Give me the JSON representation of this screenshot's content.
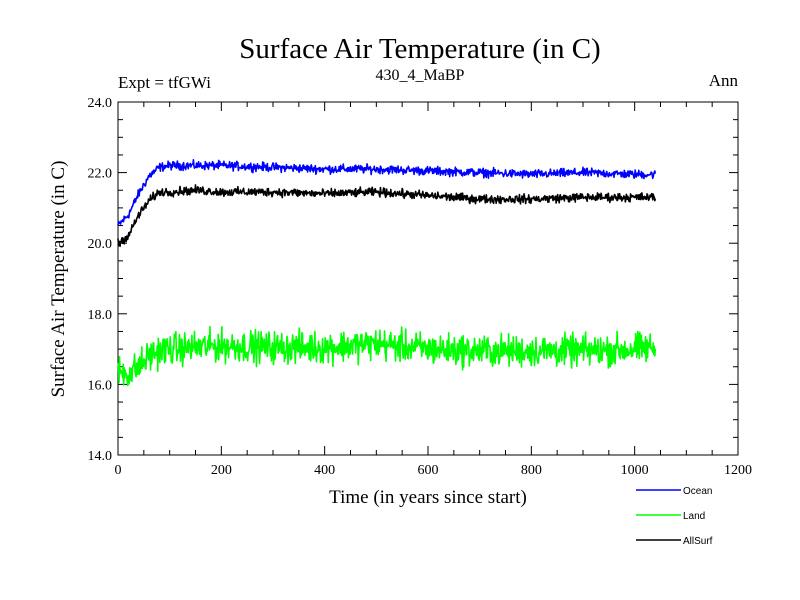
{
  "chart_data": {
    "type": "line",
    "title": "Surface Air Temperature (in C)",
    "subtitle": "430_4_MaBP",
    "left_label": "Expt = tfGWi",
    "right_label": "Ann",
    "xlabel": "Time (in years since start)",
    "ylabel": "Surface Air Temperature (in C)",
    "xlim": [
      0,
      1200
    ],
    "ylim": [
      14.0,
      24.0
    ],
    "x_ticks": [
      0,
      200,
      400,
      600,
      800,
      1000,
      1200
    ],
    "x_tick_labels": [
      "0",
      "200",
      "400",
      "600",
      "800",
      "1000",
      "1200"
    ],
    "y_ticks": [
      14,
      16,
      18,
      20,
      22,
      24
    ],
    "y_tick_labels": [
      "14.0",
      "16.0",
      "18.0",
      "20.0",
      "22.0",
      "24.0"
    ],
    "legend_position": "bottom-right, outside plot",
    "series": [
      {
        "name": "Ocean",
        "color": "#0000ff",
        "noise": 0.06,
        "x": [
          0,
          20,
          40,
          60,
          80,
          100,
          150,
          200,
          300,
          400,
          500,
          600,
          700,
          800,
          900,
          1000,
          1040
        ],
        "values": [
          20.5,
          20.8,
          21.4,
          21.9,
          22.15,
          22.2,
          22.2,
          22.2,
          22.15,
          22.1,
          22.1,
          22.05,
          22.0,
          21.95,
          22.0,
          21.95,
          21.95
        ]
      },
      {
        "name": "Land",
        "color": "#00ff00",
        "noise": 0.22,
        "x": [
          0,
          20,
          40,
          60,
          80,
          100,
          150,
          200,
          300,
          400,
          500,
          600,
          700,
          800,
          900,
          1000,
          1040
        ],
        "values": [
          16.4,
          16.3,
          16.5,
          16.8,
          16.95,
          17.0,
          17.05,
          17.1,
          17.05,
          17.05,
          17.15,
          17.0,
          16.95,
          16.95,
          16.95,
          17.0,
          17.05
        ]
      },
      {
        "name": "AllSurf",
        "color": "#000000",
        "noise": 0.06,
        "x": [
          0,
          20,
          40,
          60,
          80,
          100,
          150,
          200,
          300,
          400,
          500,
          600,
          700,
          800,
          900,
          1000,
          1040
        ],
        "values": [
          20.0,
          20.2,
          20.8,
          21.2,
          21.45,
          21.45,
          21.5,
          21.45,
          21.45,
          21.4,
          21.45,
          21.35,
          21.25,
          21.25,
          21.3,
          21.3,
          21.3
        ]
      }
    ]
  }
}
